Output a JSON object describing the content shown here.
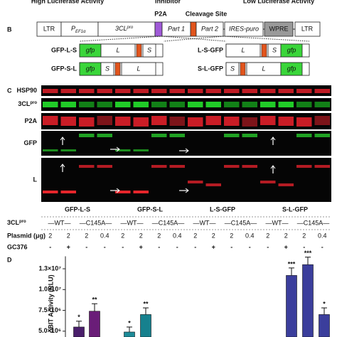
{
  "header": {
    "left": "High Luciferase Activity",
    "middle": "Inhibitor",
    "right": "Low Luciferase Activity"
  },
  "panel_b": {
    "label": "B",
    "vector": {
      "ltr_left": "LTR",
      "promoter": {
        "main": "P",
        "sub": "EF1α"
      },
      "protease": {
        "main": "3CL",
        "sup": "pro"
      },
      "p2a": "P2A",
      "cleavage": "Cleavage Site",
      "part1": "Part 1",
      "part2": "Part 2",
      "ires": "IRES-puro",
      "wpre": "WPRE",
      "ltr_right": "LTR"
    },
    "constructs": [
      {
        "name": "GFP-L-S",
        "parts": [
          "gfp",
          "L",
          "S"
        ]
      },
      {
        "name": "L-S-GFP",
        "parts": [
          "L",
          "S",
          "gfp"
        ]
      },
      {
        "name": "GFP-S-L",
        "parts": [
          "gfp",
          "S",
          "L"
        ]
      },
      {
        "name": "S-L-GFP",
        "parts": [
          "S",
          "L",
          "gfp"
        ]
      }
    ]
  },
  "panel_c": {
    "label": "C",
    "blots": [
      "HSP90",
      {
        "main": "3CL",
        "sup": "pro"
      },
      "P2A",
      "GFP",
      "L"
    ],
    "table": {
      "row_labels": [
        {
          "main": "3CL",
          "sup": "pro"
        },
        "Plasmid (μg)",
        "GC376"
      ],
      "groups": [
        {
          "name": "GFP-L-S",
          "protease": [
            "—WT—",
            "—C145A—"
          ],
          "plasmid": [
            2,
            2,
            2,
            0.4
          ],
          "gc376": [
            "-",
            "+",
            "-",
            "-"
          ]
        },
        {
          "name": "GFP-S-L",
          "protease": [
            "—WT—",
            "—C145A—"
          ],
          "plasmid": [
            2,
            2,
            2,
            0.4
          ],
          "gc376": [
            "-",
            "+",
            "-",
            "-"
          ]
        },
        {
          "name": "L-S-GFP",
          "protease": [
            "—WT—",
            "—C145A—"
          ],
          "plasmid": [
            2,
            2,
            2,
            0.4
          ],
          "gc376": [
            "-",
            "+",
            "-",
            "-"
          ]
        },
        {
          "name": "S-L-GFP",
          "protease": [
            "—WT—",
            "—C145A—"
          ],
          "plasmid": [
            2,
            2,
            2,
            0.4
          ],
          "gc376": [
            "-",
            "+",
            "-",
            "-"
          ]
        }
      ]
    }
  },
  "panel_d": {
    "label": "D",
    "chart_data": {
      "type": "bar",
      "ylabel": "oBIT Activity (RLU)",
      "categories": [
        null,
        null,
        null,
        null,
        null,
        null,
        null
      ],
      "values": [
        5500000,
        7400000,
        4900000,
        7000000,
        11700000,
        13000000,
        7000000
      ],
      "errors": [
        700000,
        900000,
        600000,
        800000,
        900000,
        900000,
        800000
      ],
      "value_labels": [
        "*",
        "**",
        "*",
        "**",
        "***",
        "***",
        "*"
      ],
      "colors": [
        "#4a1f6b",
        "#6a1d78",
        "#1d8b98",
        "#16818e",
        "#3b3e9c",
        "#3b3e9c",
        "#3b3e9c"
      ],
      "ylim": [
        4300000,
        14000000
      ],
      "yticks": [
        {
          "value": 5000000,
          "label": "5.0×10⁶"
        },
        {
          "value": 7500000,
          "label": "7.5×10⁶"
        },
        {
          "value": 10000000,
          "label": "1.0×10⁷"
        },
        {
          "value": 12500000,
          "label": "1.3×10⁷"
        }
      ]
    }
  }
}
